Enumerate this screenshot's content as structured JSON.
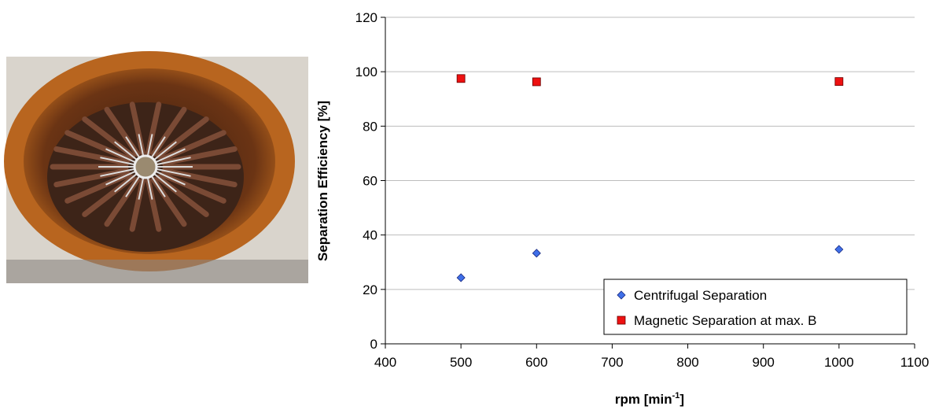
{
  "chart_data": {
    "type": "scatter",
    "xlabel": "rpm [min",
    "xlabel_sup": "-1",
    "xlabel_end": "]",
    "ylabel": "Separation Efficiency [%]",
    "xlim": [
      400,
      1100
    ],
    "xticks": [
      400,
      500,
      600,
      700,
      800,
      900,
      1000,
      1100
    ],
    "ylim": [
      0,
      120
    ],
    "yticks": [
      0,
      20,
      40,
      60,
      80,
      100,
      120
    ],
    "grid": true,
    "legend": "lower right",
    "series": [
      {
        "name": "Centrifugal Separation",
        "color": "#3f6fe8",
        "marker": "diamond",
        "x": [
          500,
          600,
          1000
        ],
        "values": [
          24.3,
          33.3,
          34.7
        ]
      },
      {
        "name": "Magnetic Separation at max. B",
        "color": "#ee1111",
        "marker": "square",
        "x": [
          500,
          600,
          1000
        ],
        "values": [
          97.5,
          96.3,
          96.4
        ]
      }
    ]
  }
}
